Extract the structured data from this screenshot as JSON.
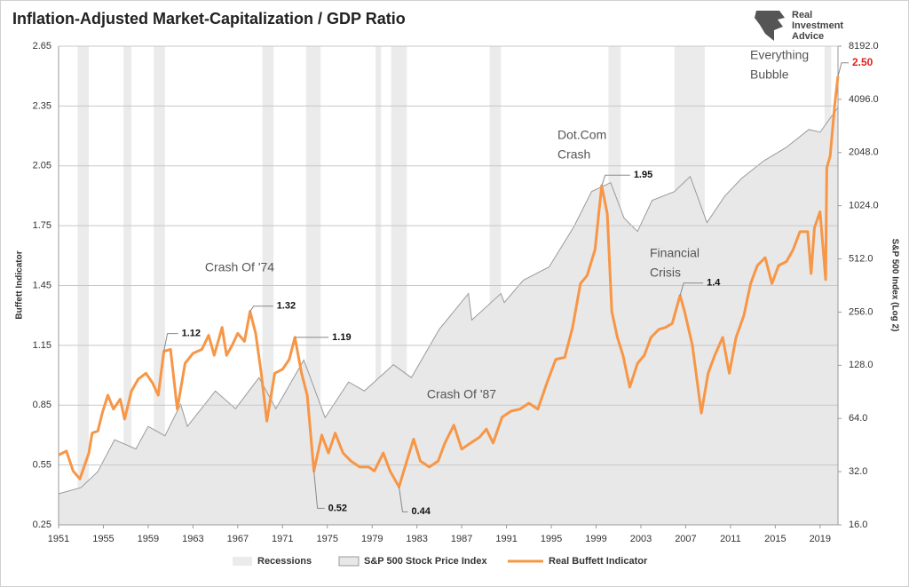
{
  "chart_data": {
    "type": "line",
    "title": "Inflation-Adjusted Market-Capitalization / GDP Ratio",
    "logo_text": [
      "Real",
      "Investment",
      "Advice"
    ],
    "y_label": "Buffett Indicator",
    "y2_label": "S&P 500 Index (Log 2)",
    "xlim": [
      1951,
      2020.6
    ],
    "xticks": [
      1951,
      1955,
      1959,
      1963,
      1967,
      1971,
      1975,
      1979,
      1983,
      1987,
      1991,
      1995,
      1999,
      2003,
      2007,
      2011,
      2015,
      2019
    ],
    "ylim": [
      0.25,
      2.65
    ],
    "yticks": [
      0.25,
      0.55,
      0.85,
      1.15,
      1.45,
      1.75,
      2.05,
      2.35,
      2.65
    ],
    "y2lim": [
      16,
      8192
    ],
    "y2_log_base": 2,
    "y2ticks": [
      {
        "value": 16,
        "label": "16.0"
      },
      {
        "value": 32,
        "label": "32.0"
      },
      {
        "value": 64,
        "label": "64.0"
      },
      {
        "value": 128,
        "label": "128.0"
      },
      {
        "value": 256,
        "label": "256.0"
      },
      {
        "value": 512,
        "label": "512.0"
      },
      {
        "value": 1024,
        "label": "1024.0"
      },
      {
        "value": 2048,
        "label": "2048.0"
      },
      {
        "value": 4096,
        "label": "4096.0"
      },
      {
        "value": 8192,
        "label": "8192.0"
      }
    ],
    "grid": true,
    "recessions": {
      "name": "Recessions",
      "color": "#ebebeb",
      "periods": [
        [
          1952.7,
          1953.7
        ],
        [
          1956.8,
          1957.5
        ],
        [
          1959.5,
          1960.5
        ],
        [
          1969.2,
          1970.2
        ],
        [
          1973.1,
          1974.4
        ],
        [
          1979.3,
          1979.8
        ],
        [
          1980.7,
          1982.1
        ],
        [
          1989.5,
          1990.5
        ],
        [
          2000.1,
          2001.2
        ],
        [
          2006.0,
          2008.7
        ],
        [
          2019.4,
          2020.0
        ]
      ]
    },
    "series": [
      {
        "name": "S&P 500 Stock Price Index",
        "type": "area",
        "axis": "y2",
        "color": "#e8e8e8",
        "line_color": "#9a9a9a",
        "x": [
          1951,
          1953,
          1954.5,
          1956,
          1957.9,
          1959,
          1960.5,
          1961.9,
          1962.5,
          1965,
          1966.8,
          1968.9,
          1970.4,
          1972.9,
          1974.8,
          1976.9,
          1978.3,
          1980.9,
          1982.5,
          1985,
          1987.6,
          1987.9,
          1990.5,
          1990.8,
          1992.5,
          1994.8,
          1997,
          1998.6,
          2000.3,
          2001.5,
          2002.7,
          2004,
          2006,
          2007.4,
          2008.9,
          2010.5,
          2012,
          2014,
          2016,
          2018,
          2019,
          2020.6
        ],
        "values": [
          24,
          26,
          32,
          48.5,
          43,
          57.7,
          51,
          77,
          57.7,
          91.6,
          72.7,
          109,
          72.7,
          137,
          64.7,
          103,
          91.6,
          129,
          109,
          205,
          326,
          231,
          326,
          290,
          388,
          461,
          776,
          1232,
          1383,
          871,
          733,
          1098,
          1232,
          1499,
          822,
          1163,
          1465,
          1843,
          2195,
          2765,
          2670,
          3690
        ]
      },
      {
        "name": "Real Buffett Indicator",
        "type": "line",
        "axis": "y",
        "color": "#f79646",
        "x": [
          1951.0,
          1951.7,
          1952.3,
          1952.9,
          1953.7,
          1954.0,
          1954.5,
          1954.9,
          1955.4,
          1955.9,
          1956.5,
          1956.9,
          1957.5,
          1958.1,
          1958.8,
          1959.4,
          1959.9,
          1960.4,
          1961.0,
          1961.6,
          1962.3,
          1963.0,
          1963.8,
          1964.4,
          1964.9,
          1965.6,
          1966.0,
          1966.5,
          1967.0,
          1967.6,
          1968.1,
          1968.6,
          1969.1,
          1969.6,
          1970.3,
          1971.0,
          1971.6,
          1972.1,
          1972.7,
          1973.2,
          1973.8,
          1974.5,
          1975.1,
          1975.7,
          1976.4,
          1977.1,
          1977.9,
          1978.7,
          1979.2,
          1980.0,
          1980.6,
          1981.4,
          1982.1,
          1982.7,
          1983.3,
          1984.1,
          1984.9,
          1985.5,
          1986.3,
          1987.0,
          1987.8,
          1988.6,
          1989.2,
          1989.8,
          1990.6,
          1991.4,
          1992.2,
          1993.0,
          1993.8,
          1994.6,
          1995.4,
          1996.2,
          1996.9,
          1997.6,
          1998.2,
          1998.9,
          1999.5,
          2000.0,
          2000.4,
          2000.9,
          2001.4,
          2002.0,
          2002.7,
          2003.3,
          2003.9,
          2004.6,
          2005.2,
          2005.8,
          2006.5,
          2006.9,
          2007.6,
          2008.4,
          2009.0,
          2009.6,
          2010.3,
          2010.9,
          2011.5,
          2012.2,
          2012.8,
          2013.4,
          2014.1,
          2014.7,
          2015.3,
          2016.0,
          2016.6,
          2017.2,
          2017.9,
          2018.2,
          2018.5,
          2019.0,
          2019.5,
          2019.6,
          2019.9,
          2020.3,
          2020.6
        ],
        "values": [
          0.6,
          0.62,
          0.52,
          0.48,
          0.61,
          0.71,
          0.72,
          0.81,
          0.9,
          0.83,
          0.88,
          0.78,
          0.92,
          0.98,
          1.01,
          0.96,
          0.9,
          1.12,
          1.13,
          0.83,
          1.06,
          1.11,
          1.13,
          1.2,
          1.1,
          1.24,
          1.1,
          1.15,
          1.21,
          1.17,
          1.32,
          1.21,
          1.01,
          0.77,
          1.01,
          1.03,
          1.08,
          1.19,
          1.01,
          0.9,
          0.52,
          0.7,
          0.61,
          0.71,
          0.61,
          0.57,
          0.54,
          0.54,
          0.52,
          0.61,
          0.52,
          0.44,
          0.57,
          0.68,
          0.57,
          0.54,
          0.57,
          0.66,
          0.75,
          0.63,
          0.66,
          0.69,
          0.73,
          0.66,
          0.79,
          0.82,
          0.83,
          0.86,
          0.83,
          0.96,
          1.08,
          1.09,
          1.24,
          1.46,
          1.5,
          1.63,
          1.95,
          1.81,
          1.32,
          1.19,
          1.1,
          0.94,
          1.06,
          1.1,
          1.19,
          1.23,
          1.24,
          1.26,
          1.4,
          1.32,
          1.15,
          0.81,
          1.01,
          1.1,
          1.19,
          1.01,
          1.19,
          1.3,
          1.46,
          1.55,
          1.59,
          1.46,
          1.55,
          1.57,
          1.63,
          1.72,
          1.72,
          1.51,
          1.74,
          1.82,
          1.48,
          2.04,
          2.1,
          2.35,
          2.5
        ]
      }
    ],
    "callouts": [
      {
        "x": 1960.4,
        "value": 1.12
      },
      {
        "x": 1968.1,
        "value": 1.32
      },
      {
        "x": 1972.1,
        "value": 1.19
      },
      {
        "x": 1973.8,
        "value": 0.52
      },
      {
        "x": 1981.4,
        "value": 0.44
      },
      {
        "x": 1999.5,
        "value": 1.95
      },
      {
        "x": 2006.5,
        "value": 1.4
      },
      {
        "x": 2020.6,
        "value": 2.5,
        "label": "2.50",
        "color": "#e02020"
      }
    ],
    "annotations": [
      {
        "lines": [
          "Crash Of '74"
        ]
      },
      {
        "lines": [
          "Dot.Com",
          "Crash"
        ]
      },
      {
        "lines": [
          "Financial",
          "Crisis"
        ]
      },
      {
        "lines": [
          "Crash Of '87"
        ]
      },
      {
        "lines": [
          "Everything",
          "Bubble"
        ]
      }
    ]
  }
}
